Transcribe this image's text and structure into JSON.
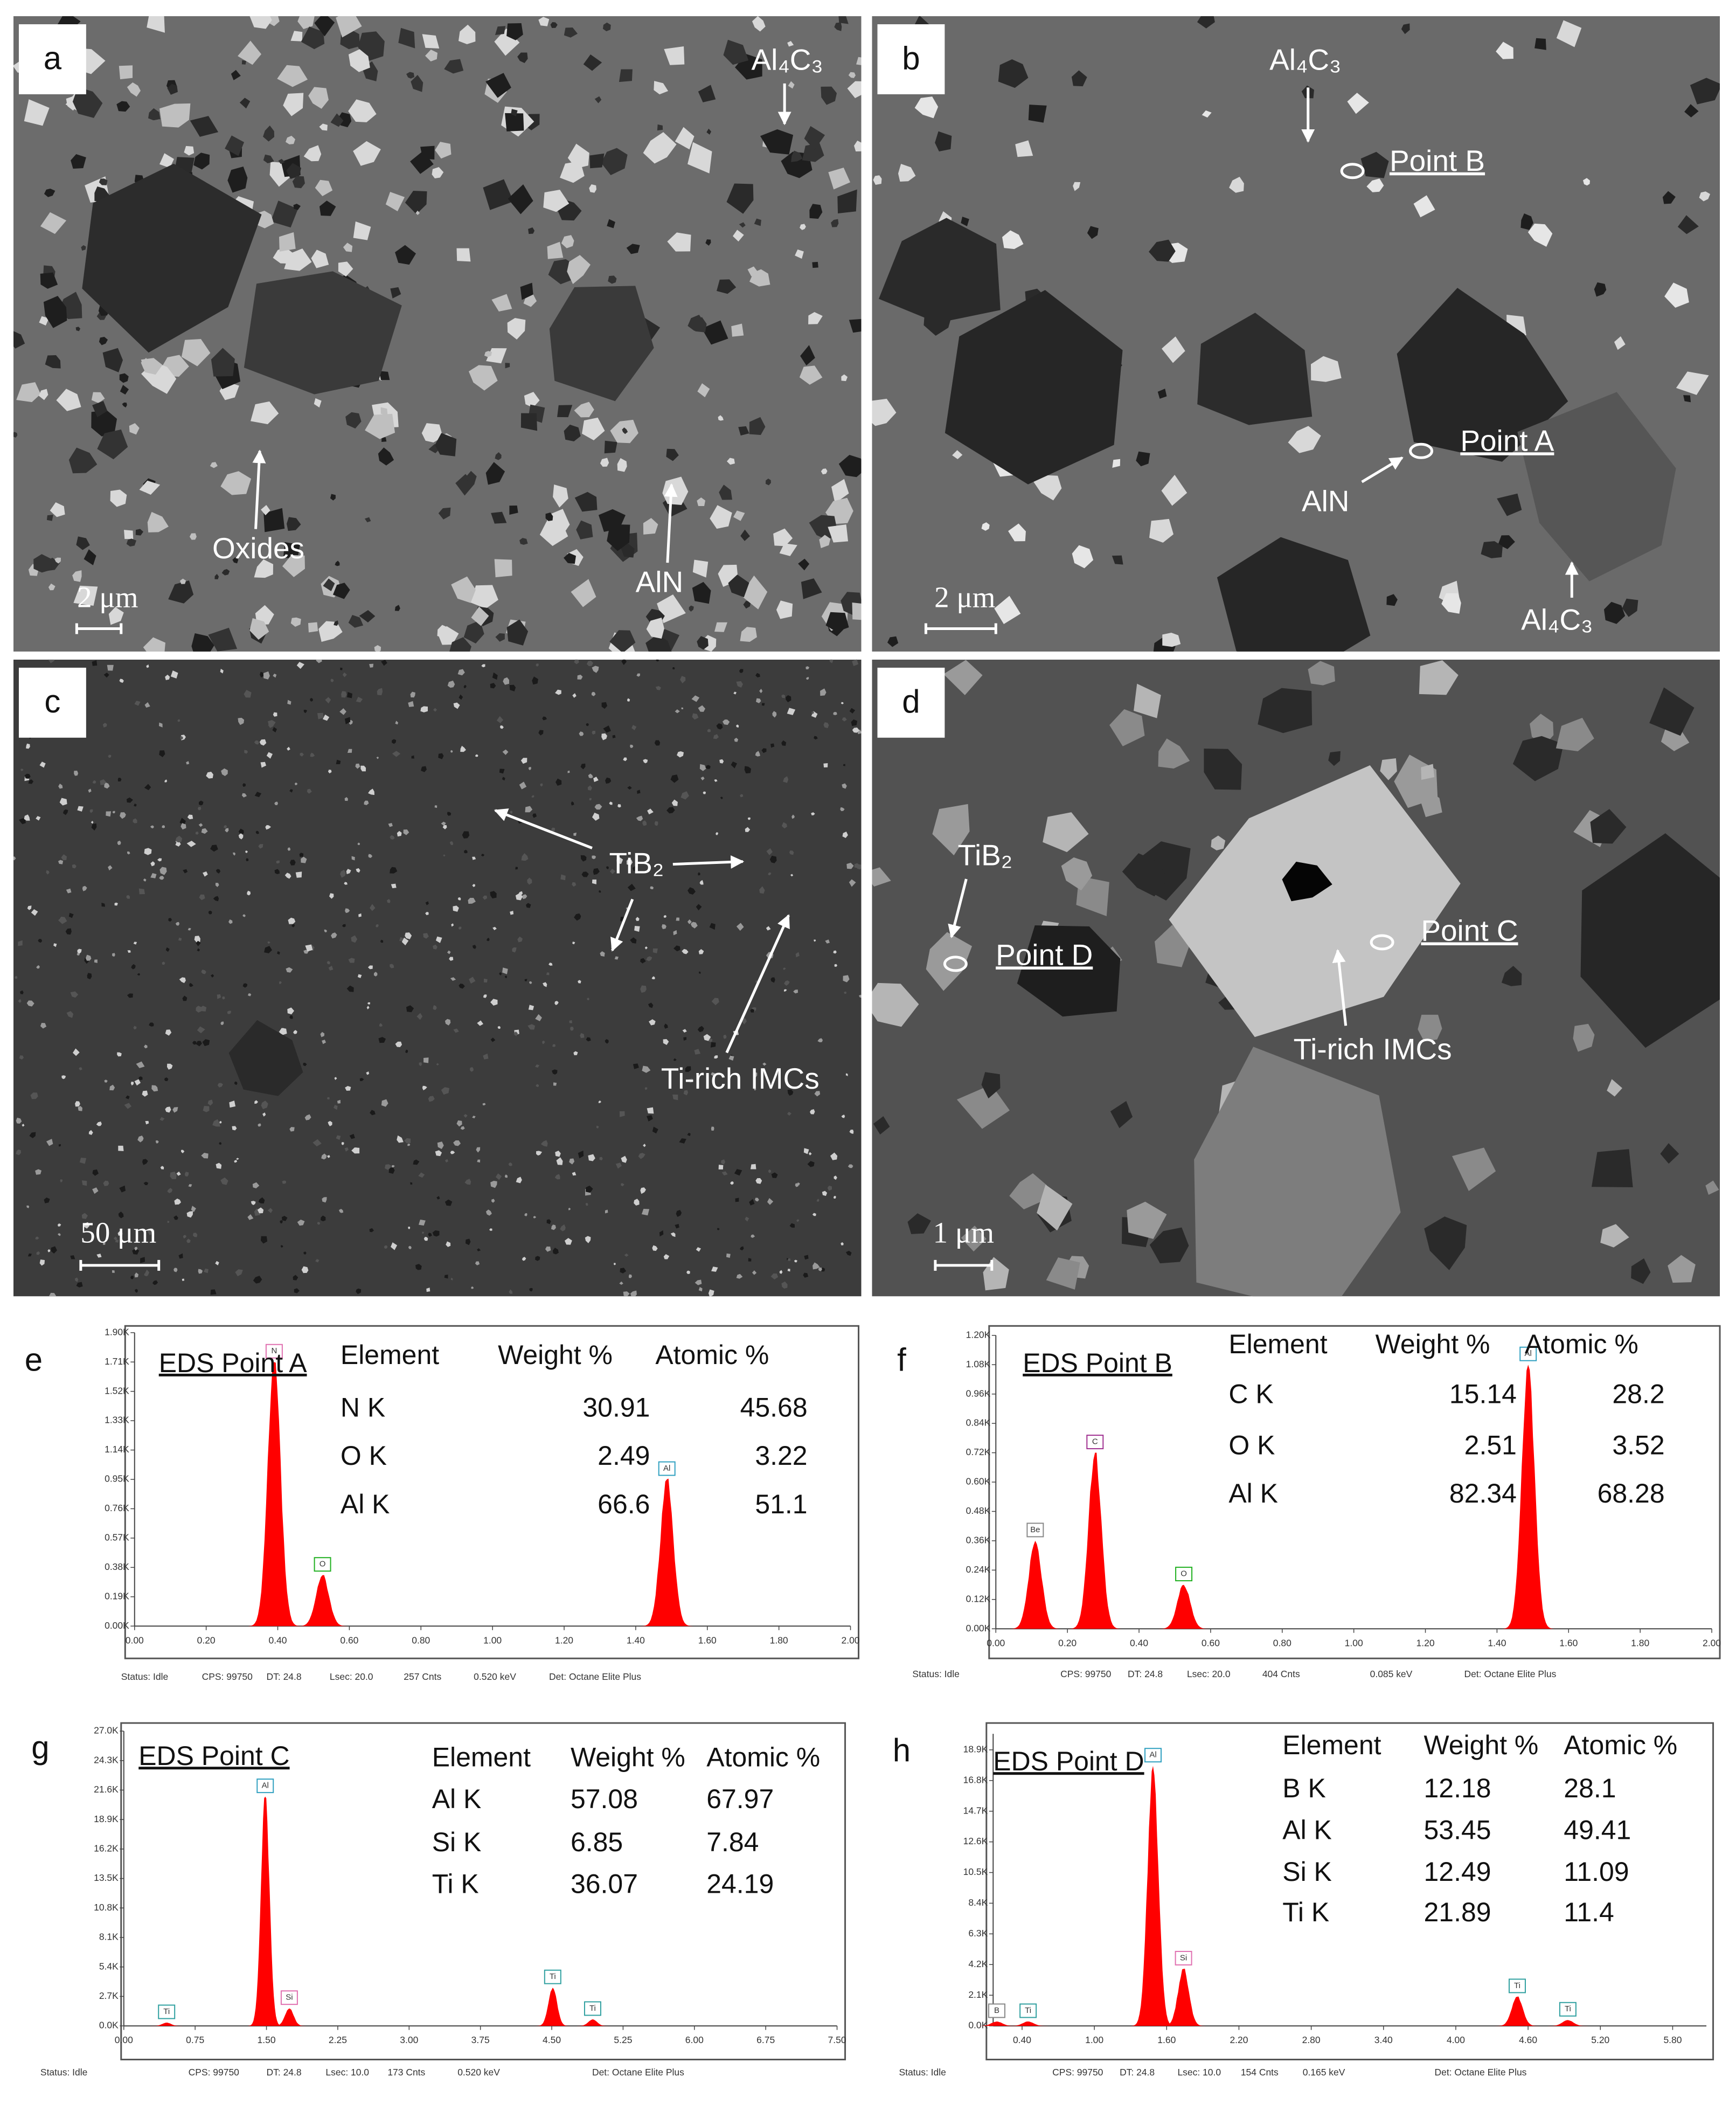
{
  "images": [
    {
      "letter": "a",
      "scale_bar": "2 μm",
      "labels": [
        "Al₄C₃",
        "Oxides",
        "AlN"
      ]
    },
    {
      "letter": "b",
      "scale_bar": "2 μm",
      "labels": [
        "Al₄C₃",
        "Point B",
        "Point A",
        "AlN",
        "Al₄C₃"
      ]
    },
    {
      "letter": "c",
      "scale_bar": "50 μm",
      "labels": [
        "TiB₂",
        "Ti-rich IMCs"
      ]
    },
    {
      "letter": "d",
      "scale_bar": "1 μm",
      "labels": [
        "TiB₂",
        "Point D",
        "Point C",
        "Ti-rich IMCs"
      ]
    }
  ],
  "spectra": [
    {
      "letter": "e",
      "title": "EDS Point A",
      "fill": "#ff0000",
      "xlim": [
        0,
        2.0
      ],
      "xticks": [
        {
          "value": 0,
          "label": "0.00"
        },
        {
          "value": 0.2,
          "label": "0.20"
        },
        {
          "value": 0.4,
          "label": "0.40"
        },
        {
          "value": 0.6,
          "label": "0.60"
        },
        {
          "value": 0.8,
          "label": "0.80"
        },
        {
          "value": 1.0,
          "label": "1.00"
        },
        {
          "value": 1.2,
          "label": "1.20"
        },
        {
          "value": 1.4,
          "label": "1.40"
        },
        {
          "value": 1.6,
          "label": "1.60"
        },
        {
          "value": 1.8,
          "label": "1.80"
        },
        {
          "value": 2.0,
          "label": "2.00"
        }
      ],
      "ylim": [
        0,
        1.9
      ],
      "yticks": [
        {
          "value": 0,
          "label": "0.00K"
        },
        {
          "value": 0.19,
          "label": "0.19K"
        },
        {
          "value": 0.38,
          "label": "0.38K"
        },
        {
          "value": 0.57,
          "label": "0.57K"
        },
        {
          "value": 0.76,
          "label": "0.76K"
        },
        {
          "value": 0.95,
          "label": "0.95K"
        },
        {
          "value": 1.14,
          "label": "1.14K"
        },
        {
          "value": 1.33,
          "label": "1.33K"
        },
        {
          "value": 1.52,
          "label": "1.52K"
        },
        {
          "value": 1.71,
          "label": "1.71K"
        },
        {
          "value": 1.9,
          "label": "1.90K"
        }
      ],
      "peaks": [
        {
          "label": "N",
          "energy": 0.39,
          "counts": 1.71,
          "color": "#e070b0"
        },
        {
          "label": "O",
          "energy": 0.525,
          "counts": 0.33,
          "color": "#20b020"
        },
        {
          "label": "Al",
          "energy": 1.487,
          "counts": 0.95,
          "color": "#30a0c0"
        }
      ],
      "table": {
        "header": [
          "Element",
          "Weight %",
          "Atomic %"
        ],
        "rows": [
          [
            "N  K",
            30.91,
            45.68
          ],
          [
            "O  K",
            2.49,
            3.22
          ],
          [
            "Al K",
            66.6,
            51.1
          ]
        ]
      },
      "status": [
        "Status: Idle",
        "CPS: 99750",
        "DT: 24.8",
        "Lsec: 20.0",
        "257 Cnts",
        "0.520 keV",
        "Det: Octane Elite Plus"
      ]
    },
    {
      "letter": "f",
      "title": "EDS Point B",
      "fill": "#ff0000",
      "xlim": [
        0,
        2.0
      ],
      "xticks": [
        {
          "value": 0,
          "label": "0.00"
        },
        {
          "value": 0.2,
          "label": "0.20"
        },
        {
          "value": 0.4,
          "label": "0.40"
        },
        {
          "value": 0.6,
          "label": "0.60"
        },
        {
          "value": 0.8,
          "label": "0.80"
        },
        {
          "value": 1.0,
          "label": "1.00"
        },
        {
          "value": 1.2,
          "label": "1.20"
        },
        {
          "value": 1.4,
          "label": "1.40"
        },
        {
          "value": 1.6,
          "label": "1.60"
        },
        {
          "value": 1.8,
          "label": "1.80"
        },
        {
          "value": 2.0,
          "label": "2.00"
        }
      ],
      "ylim": [
        0,
        1.2
      ],
      "yticks": [
        {
          "value": 0,
          "label": "0.00K"
        },
        {
          "value": 0.12,
          "label": "0.12K"
        },
        {
          "value": 0.24,
          "label": "0.24K"
        },
        {
          "value": 0.36,
          "label": "0.36K"
        },
        {
          "value": 0.48,
          "label": "0.48K"
        },
        {
          "value": 0.6,
          "label": "0.60K"
        },
        {
          "value": 0.72,
          "label": "0.72K"
        },
        {
          "value": 0.84,
          "label": "0.84K"
        },
        {
          "value": 0.96,
          "label": "0.96K"
        },
        {
          "value": 1.08,
          "label": "1.08K"
        },
        {
          "value": 1.2,
          "label": "1.20K"
        }
      ],
      "peaks": [
        {
          "label": "Be",
          "energy": 0.11,
          "counts": 0.36,
          "color": "#888888"
        },
        {
          "label": "C",
          "energy": 0.277,
          "counts": 0.72,
          "color": "#a03090"
        },
        {
          "label": "O",
          "energy": 0.525,
          "counts": 0.18,
          "color": "#20b020"
        },
        {
          "label": "Al",
          "energy": 1.487,
          "counts": 1.08,
          "color": "#30a0c0"
        }
      ],
      "table": {
        "header": [
          "Element",
          "Weight %",
          "Atomic %"
        ],
        "rows": [
          [
            "C  K",
            15.14,
            28.2
          ],
          [
            "O  K",
            2.51,
            3.52
          ],
          [
            "Al K",
            82.34,
            68.28
          ]
        ]
      },
      "status": [
        "Status: Idle",
        "CPS: 99750",
        "DT: 24.8",
        "Lsec: 20.0",
        "404 Cnts",
        "0.085 keV",
        "Det: Octane Elite Plus"
      ]
    },
    {
      "letter": "g",
      "title": "EDS Point C",
      "fill": "#ff0000",
      "xlim": [
        0,
        7.5
      ],
      "xticks": [
        {
          "value": 0,
          "label": "0.00"
        },
        {
          "value": 0.75,
          "label": "0.75"
        },
        {
          "value": 1.5,
          "label": "1.50"
        },
        {
          "value": 2.25,
          "label": "2.25"
        },
        {
          "value": 3.0,
          "label": "3.00"
        },
        {
          "value": 3.75,
          "label": "3.75"
        },
        {
          "value": 4.5,
          "label": "4.50"
        },
        {
          "value": 5.25,
          "label": "5.25"
        },
        {
          "value": 6.0,
          "label": "6.00"
        },
        {
          "value": 6.75,
          "label": "6.75"
        },
        {
          "value": 7.5,
          "label": "7.50"
        }
      ],
      "ylim": [
        0,
        27.0
      ],
      "yticks": [
        {
          "value": 0,
          "label": "0.0K"
        },
        {
          "value": 2.7,
          "label": "2.7K"
        },
        {
          "value": 5.4,
          "label": "5.4K"
        },
        {
          "value": 8.1,
          "label": "8.1K"
        },
        {
          "value": 10.8,
          "label": "10.8K"
        },
        {
          "value": 13.5,
          "label": "13.5K"
        },
        {
          "value": 16.2,
          "label": "16.2K"
        },
        {
          "value": 18.9,
          "label": "18.9K"
        },
        {
          "value": 21.6,
          "label": "21.6K"
        },
        {
          "value": 24.3,
          "label": "24.3K"
        },
        {
          "value": 27.0,
          "label": "27.0K"
        }
      ],
      "peaks": [
        {
          "label": "Ti",
          "energy": 0.45,
          "counts": 0.3,
          "color": "#30a0a0"
        },
        {
          "label": "Al",
          "energy": 1.487,
          "counts": 21.0,
          "color": "#30a0c0"
        },
        {
          "label": "Si",
          "energy": 1.74,
          "counts": 1.6,
          "color": "#e070b0"
        },
        {
          "label": "Ti",
          "energy": 4.51,
          "counts": 3.5,
          "color": "#30a0a0"
        },
        {
          "label": "Ti",
          "energy": 4.93,
          "counts": 0.6,
          "color": "#30a0a0"
        }
      ],
      "table": {
        "header": [
          "Element",
          "Weight %",
          "Atomic %"
        ],
        "rows": [
          [
            "Al K",
            57.08,
            67.97
          ],
          [
            "Si K",
            6.85,
            7.84
          ],
          [
            "Ti K",
            36.07,
            24.19
          ]
        ]
      },
      "status": [
        "Status: Idle",
        "CPS: 99750",
        "DT: 24.8",
        "Lsec: 10.0",
        "173 Cnts",
        "0.520 keV",
        "Det: Octane Elite Plus"
      ]
    },
    {
      "letter": "h",
      "title": "EDS Point D",
      "fill": "#ff0000",
      "xlim": [
        0.16,
        6.08
      ],
      "xticks": [
        {
          "value": 0.4,
          "label": "0.40"
        },
        {
          "value": 1.0,
          "label": "1.00"
        },
        {
          "value": 1.6,
          "label": "1.60"
        },
        {
          "value": 2.2,
          "label": "2.20"
        },
        {
          "value": 2.8,
          "label": "2.80"
        },
        {
          "value": 3.4,
          "label": "3.40"
        },
        {
          "value": 4.0,
          "label": "4.00"
        },
        {
          "value": 4.6,
          "label": "4.60"
        },
        {
          "value": 5.2,
          "label": "5.20"
        },
        {
          "value": 5.8,
          "label": "5.80"
        }
      ],
      "ylim": [
        0,
        20.0
      ],
      "yticks": [
        {
          "value": 0,
          "label": "0.0K"
        },
        {
          "value": 2.1,
          "label": "2.1K"
        },
        {
          "value": 4.2,
          "label": "4.2K"
        },
        {
          "value": 6.3,
          "label": "6.3K"
        },
        {
          "value": 8.4,
          "label": "8.4K"
        },
        {
          "value": 10.5,
          "label": "10.5K"
        },
        {
          "value": 12.6,
          "label": "12.6K"
        },
        {
          "value": 14.7,
          "label": "14.7K"
        },
        {
          "value": 16.8,
          "label": "16.8K"
        },
        {
          "value": 18.9,
          "label": "18.9K"
        }
      ],
      "peaks": [
        {
          "label": "B",
          "energy": 0.19,
          "counts": 0.3,
          "color": "#888888"
        },
        {
          "label": "Ti",
          "energy": 0.45,
          "counts": 0.3,
          "color": "#30a0a0"
        },
        {
          "label": "Al",
          "energy": 1.487,
          "counts": 17.8,
          "color": "#30a0c0"
        },
        {
          "label": "Si",
          "energy": 1.74,
          "counts": 3.9,
          "color": "#e070b0"
        },
        {
          "label": "Ti",
          "energy": 4.51,
          "counts": 2.0,
          "color": "#30a0a0"
        },
        {
          "label": "Ti",
          "energy": 4.93,
          "counts": 0.4,
          "color": "#30a0a0"
        }
      ],
      "table": {
        "header": [
          "Element",
          "Weight %",
          "Atomic %"
        ],
        "rows": [
          [
            "B  K",
            12.18,
            28.1
          ],
          [
            "Al K",
            53.45,
            49.41
          ],
          [
            "Si K",
            12.49,
            11.09
          ],
          [
            "Ti K",
            21.89,
            11.4
          ]
        ]
      },
      "status": [
        "Status: Idle",
        "CPS: 99750",
        "DT: 24.8",
        "Lsec: 10.0",
        "154 Cnts",
        "0.165 keV",
        "Det: Octane Elite Plus"
      ]
    }
  ]
}
